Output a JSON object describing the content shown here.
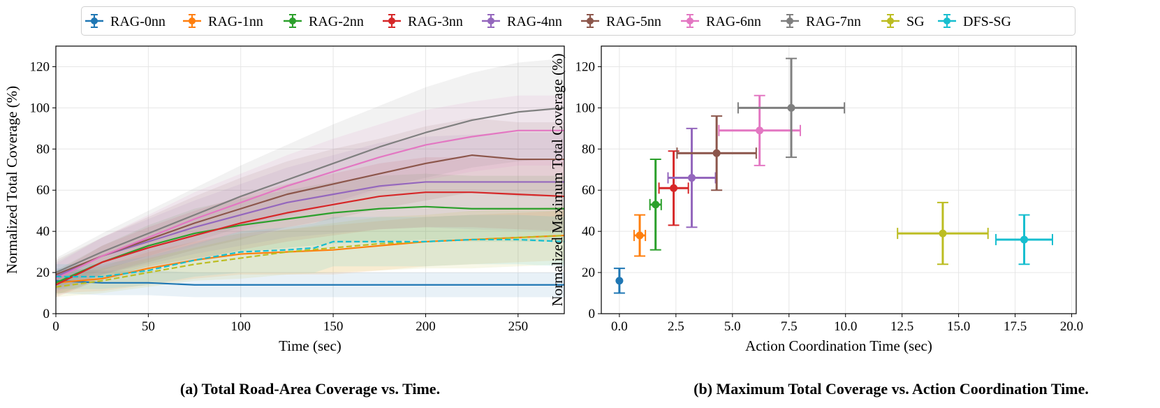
{
  "legend_labels": [
    "RAG-0nn",
    "RAG-1nn",
    "RAG-2nn",
    "RAG-3nn",
    "RAG-4nn",
    "RAG-5nn",
    "RAG-6nn",
    "RAG-7nn",
    "SG",
    "DFS-SG"
  ],
  "colors": [
    "#1f77b4",
    "#ff7f0e",
    "#2ca02c",
    "#d62728",
    "#9467bd",
    "#8c564b",
    "#e377c2",
    "#7f7f7f",
    "#bcbd22",
    "#17becf"
  ],
  "captions": {
    "a": "(a) Total Road-Area Coverage vs. Time.",
    "b": "(b) Maximum Total Coverage vs. Action Coordination Time."
  },
  "chart_data": [
    {
      "type": "line",
      "xlabel": "Time (sec)",
      "ylabel": "Normalized Total Coverage (%)",
      "xlim": [
        0,
        275
      ],
      "ylim": [
        0,
        130
      ],
      "xticks": [
        0,
        50,
        100,
        150,
        200,
        250
      ],
      "yticks": [
        0,
        20,
        40,
        60,
        80,
        100,
        120
      ],
      "grid": true,
      "shaded_band": "std",
      "series": [
        {
          "name": "RAG-0nn",
          "style": "solid",
          "x": [
            0,
            25,
            50,
            75,
            100,
            125,
            150,
            175,
            200,
            225,
            250,
            275
          ],
          "y": [
            16,
            15,
            15,
            14,
            14,
            14,
            14,
            14,
            14,
            14,
            14,
            14
          ],
          "band": [
            6,
            6,
            6,
            6,
            6,
            6,
            6,
            6,
            6,
            6,
            6,
            6
          ]
        },
        {
          "name": "RAG-1nn",
          "style": "solid",
          "x": [
            0,
            25,
            50,
            75,
            100,
            125,
            150,
            175,
            200,
            225,
            250,
            275
          ],
          "y": [
            15,
            17,
            22,
            26,
            29,
            30,
            31,
            33,
            35,
            36,
            37,
            38
          ],
          "band": [
            5,
            6,
            8,
            9,
            10,
            11,
            12,
            12,
            12,
            12,
            12,
            12
          ]
        },
        {
          "name": "RAG-2nn",
          "style": "solid",
          "x": [
            0,
            25,
            50,
            75,
            100,
            125,
            150,
            175,
            200,
            225,
            250,
            275
          ],
          "y": [
            15,
            25,
            33,
            39,
            43,
            46,
            49,
            51,
            52,
            51,
            51,
            51
          ],
          "band": [
            6,
            8,
            10,
            12,
            13,
            14,
            15,
            16,
            16,
            16,
            16,
            16
          ]
        },
        {
          "name": "RAG-3nn",
          "style": "solid",
          "x": [
            0,
            25,
            50,
            75,
            100,
            125,
            150,
            175,
            200,
            225,
            250,
            275
          ],
          "y": [
            14,
            25,
            32,
            38,
            44,
            49,
            53,
            57,
            59,
            59,
            58,
            57
          ],
          "band": [
            6,
            8,
            10,
            12,
            13,
            14,
            15,
            16,
            17,
            17,
            17,
            17
          ]
        },
        {
          "name": "RAG-4nn",
          "style": "solid",
          "x": [
            0,
            25,
            50,
            75,
            100,
            125,
            150,
            175,
            200,
            225,
            250,
            275
          ],
          "y": [
            18,
            28,
            35,
            42,
            48,
            54,
            58,
            62,
            64,
            64,
            64,
            64
          ],
          "band": [
            7,
            9,
            11,
            13,
            15,
            17,
            19,
            21,
            22,
            23,
            24,
            24
          ]
        },
        {
          "name": "RAG-5nn",
          "style": "solid",
          "x": [
            0,
            25,
            50,
            75,
            100,
            125,
            150,
            175,
            200,
            225,
            250,
            275
          ],
          "y": [
            19,
            28,
            36,
            44,
            51,
            58,
            63,
            68,
            73,
            77,
            75,
            75
          ],
          "band": [
            7,
            9,
            11,
            13,
            15,
            16,
            17,
            17,
            18,
            18,
            18,
            18
          ]
        },
        {
          "name": "RAG-6nn",
          "style": "solid",
          "x": [
            0,
            25,
            50,
            75,
            100,
            125,
            150,
            175,
            200,
            225,
            250,
            275
          ],
          "y": [
            17,
            28,
            37,
            46,
            54,
            62,
            69,
            76,
            82,
            86,
            89,
            89
          ],
          "band": [
            7,
            9,
            11,
            13,
            14,
            15,
            16,
            16,
            17,
            17,
            17,
            17
          ]
        },
        {
          "name": "RAG-7nn",
          "style": "solid",
          "x": [
            0,
            25,
            50,
            75,
            100,
            125,
            150,
            175,
            200,
            225,
            250,
            275
          ],
          "y": [
            20,
            30,
            39,
            48,
            57,
            65,
            73,
            81,
            88,
            94,
            98,
            100
          ],
          "band": [
            7,
            9,
            11,
            13,
            15,
            17,
            19,
            20,
            22,
            23,
            24,
            24
          ]
        },
        {
          "name": "SG",
          "style": "dashed",
          "x": [
            0,
            25,
            50,
            75,
            100,
            125,
            150,
            175,
            200,
            225,
            250,
            275
          ],
          "y": [
            13,
            16,
            20,
            24,
            27,
            30,
            32,
            34,
            35,
            36,
            37,
            38
          ],
          "band": [
            5,
            6,
            7,
            8,
            10,
            11,
            12,
            13,
            13,
            14,
            14,
            14
          ]
        },
        {
          "name": "DFS-SG",
          "style": "dashed",
          "x": [
            0,
            25,
            50,
            75,
            100,
            125,
            140,
            150,
            175,
            200,
            225,
            250,
            275
          ],
          "y": [
            18,
            18,
            21,
            26,
            30,
            31,
            32,
            35,
            35,
            35,
            36,
            36,
            35
          ],
          "band": [
            6,
            6,
            7,
            8,
            10,
            11,
            12,
            12,
            12,
            12,
            12,
            12,
            12
          ]
        }
      ]
    },
    {
      "type": "scatter",
      "xlabel": "Action Coordination Time (sec)",
      "ylabel": "Normalized Maximum Total Coverage (%)",
      "xlim": [
        -0.8,
        20.2
      ],
      "ylim": [
        0,
        130
      ],
      "xticks": [
        0.0,
        2.5,
        5.0,
        7.5,
        10.0,
        12.5,
        15.0,
        17.5,
        20.0
      ],
      "xtick_labels": [
        "0.0",
        "2.5",
        "5.0",
        "7.5",
        "10.0",
        "12.5",
        "15.0",
        "17.5",
        "20.0"
      ],
      "yticks": [
        0,
        20,
        40,
        60,
        80,
        100,
        120
      ],
      "grid": true,
      "error_bars": true,
      "points": [
        {
          "name": "RAG-0nn",
          "x": 0.0,
          "y": 16,
          "xerr": 0.0,
          "yerr": 6
        },
        {
          "name": "RAG-1nn",
          "x": 0.9,
          "y": 38,
          "xerr": 0.25,
          "yerr": 10
        },
        {
          "name": "RAG-2nn",
          "x": 1.6,
          "y": 53,
          "xerr": 0.25,
          "yerr": 22
        },
        {
          "name": "RAG-3nn",
          "x": 2.4,
          "y": 61,
          "xerr": 0.65,
          "yerr": 18
        },
        {
          "name": "RAG-4nn",
          "x": 3.2,
          "y": 66,
          "xerr": 1.05,
          "yerr": 24
        },
        {
          "name": "RAG-5nn",
          "x": 4.3,
          "y": 78,
          "xerr": 1.75,
          "yerr": 18
        },
        {
          "name": "RAG-6nn",
          "x": 6.2,
          "y": 89,
          "xerr": 1.8,
          "yerr": 17
        },
        {
          "name": "RAG-7nn",
          "x": 7.6,
          "y": 100,
          "xerr": 2.35,
          "yerr": 24
        },
        {
          "name": "SG",
          "x": 14.3,
          "y": 39,
          "xerr": 2.0,
          "yerr": 15
        },
        {
          "name": "DFS-SG",
          "x": 17.9,
          "y": 36,
          "xerr": 1.25,
          "yerr": 12
        }
      ]
    }
  ]
}
